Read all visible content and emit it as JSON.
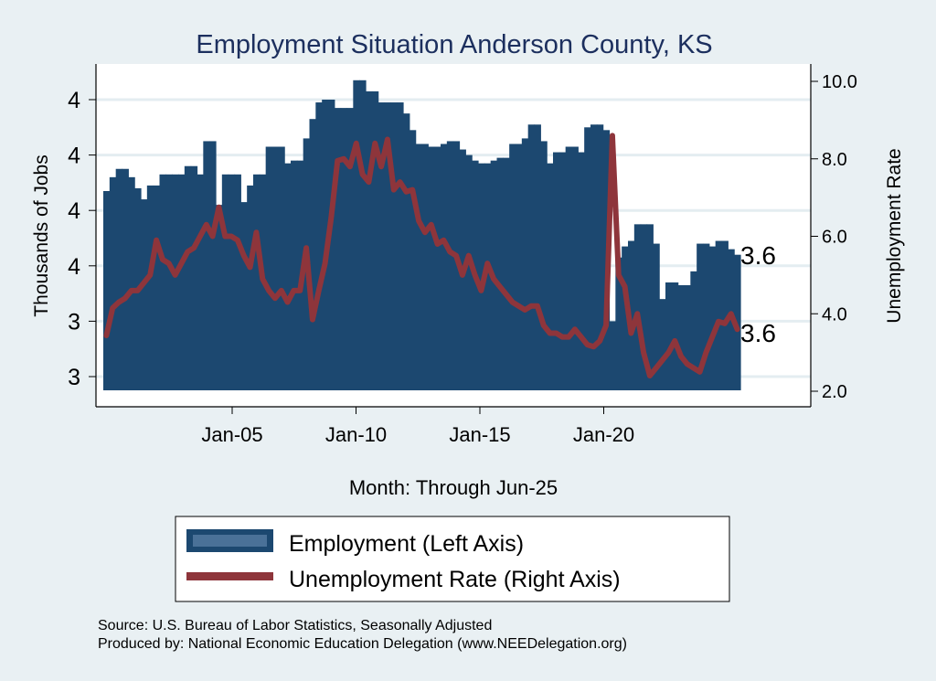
{
  "chart_data": {
    "type": "bar+line",
    "title": "Employment Situation Anderson  County, KS",
    "xlabel": "Month: Through Jun-25",
    "ylabel_left": "Thousands of Jobs",
    "ylabel_right": "Unemployment Rate",
    "x_start": "Jan-00",
    "x_end": "Jun-25",
    "x_frequency": "quarterly",
    "x_ticks": [
      "Jan-05",
      "Jan-10",
      "Jan-15",
      "Jan-20"
    ],
    "x_tick_years": [
      2005,
      2010,
      2015,
      2020
    ],
    "left_ticks": [
      3.2,
      3.4,
      3.6,
      3.8,
      4.0,
      4.2
    ],
    "left_tick_labels": [
      "3",
      "3",
      "4",
      "4",
      "4",
      "4"
    ],
    "left_ylim": [
      3.15,
      4.35
    ],
    "right_ticks": [
      2,
      4,
      6,
      8,
      10
    ],
    "right_tick_labels": [
      "2.0",
      "4.0",
      "6.0",
      "8.0",
      "10.0"
    ],
    "right_ylim": [
      1.6,
      10.4
    ],
    "grid": true,
    "series": [
      {
        "name": "Employment (Left Axis)",
        "axis": "left",
        "color": "#1c4870",
        "end_label": "3.6",
        "values": [
          3.87,
          3.92,
          3.95,
          3.95,
          3.92,
          3.88,
          3.84,
          3.89,
          3.89,
          3.93,
          3.93,
          3.93,
          3.93,
          3.96,
          3.96,
          3.93,
          4.05,
          4.05,
          3.82,
          3.93,
          3.93,
          3.93,
          3.83,
          3.89,
          3.93,
          3.93,
          4.03,
          4.03,
          4.03,
          3.97,
          3.98,
          3.98,
          4.06,
          4.13,
          4.19,
          4.2,
          4.2,
          4.17,
          4.17,
          4.17,
          4.27,
          4.27,
          4.23,
          4.23,
          4.19,
          4.19,
          4.19,
          4.19,
          4.15,
          4.09,
          4.04,
          4.04,
          4.03,
          4.03,
          4.04,
          4.05,
          4.05,
          4.02,
          4.0,
          3.98,
          3.97,
          3.97,
          3.98,
          3.99,
          3.99,
          4.04,
          4.04,
          4.06,
          4.11,
          4.11,
          4.05,
          3.97,
          4.01,
          4.01,
          4.03,
          4.03,
          4.01,
          4.1,
          4.11,
          4.11,
          4.09,
          3.4,
          3.63,
          3.67,
          3.69,
          3.75,
          3.75,
          3.75,
          3.68,
          3.48,
          3.54,
          3.54,
          3.53,
          3.53,
          3.58,
          3.68,
          3.68,
          3.67,
          3.69,
          3.69,
          3.66,
          3.64
        ]
      },
      {
        "name": "Unemployment Rate (Right Axis)",
        "axis": "right",
        "color": "#8e353b",
        "end_label": "3.6",
        "values": [
          3.44,
          4.15,
          4.3,
          4.4,
          4.6,
          4.6,
          4.8,
          5.0,
          5.9,
          5.4,
          5.3,
          5.0,
          5.3,
          5.6,
          5.7,
          6.0,
          6.3,
          6.0,
          6.75,
          6.0,
          6.0,
          5.9,
          5.5,
          5.2,
          6.1,
          4.9,
          4.6,
          4.4,
          4.6,
          4.3,
          4.6,
          4.6,
          5.7,
          3.85,
          4.6,
          5.3,
          6.5,
          7.95,
          8.0,
          7.8,
          8.4,
          7.6,
          7.4,
          8.4,
          7.8,
          8.5,
          7.2,
          7.4,
          7.15,
          7.2,
          6.4,
          6.1,
          6.3,
          5.8,
          5.9,
          5.6,
          5.5,
          5.0,
          5.5,
          5.0,
          4.6,
          5.3,
          4.9,
          4.7,
          4.5,
          4.3,
          4.2,
          4.1,
          4.2,
          4.2,
          3.7,
          3.5,
          3.5,
          3.4,
          3.4,
          3.6,
          3.4,
          3.2,
          3.15,
          3.3,
          3.7,
          8.6,
          5.0,
          4.7,
          3.5,
          4.0,
          3.0,
          2.4,
          2.6,
          2.8,
          3.0,
          3.3,
          2.9,
          2.7,
          2.6,
          2.5,
          3.0,
          3.4,
          3.8,
          3.75,
          4.0,
          3.6
        ]
      }
    ],
    "legend": {
      "placement": "bottom",
      "items": [
        "Employment (Left Axis)",
        "Unemployment Rate (Right Axis)"
      ]
    },
    "notes": [
      "Source: U.S. Bureau of Labor Statistics, Seasonally Adjusted",
      "Produced by: National Economic Education Delegation (www.NEEDelegation.org)"
    ]
  }
}
